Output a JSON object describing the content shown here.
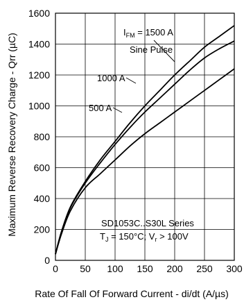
{
  "chart_data": {
    "type": "line",
    "title": "",
    "xlabel": "Rate Of Fall Of Forward Current - di/dt (A/µs)",
    "ylabel": "Maximum Reverse Recovery Charge - Qrr (µC)",
    "xlim": [
      0,
      300
    ],
    "ylim": [
      0,
      1600
    ],
    "x_ticks": [
      0,
      50,
      100,
      150,
      200,
      250,
      300
    ],
    "y_ticks": [
      0,
      200,
      400,
      600,
      800,
      1000,
      1200,
      1400,
      1600
    ],
    "x_tick_labels": [
      "0",
      "50",
      "100",
      "150",
      "200",
      "250",
      "300"
    ],
    "y_tick_labels": [
      "0",
      "200",
      "400",
      "600",
      "800",
      "1000",
      "1200",
      "1400",
      "1600"
    ],
    "grid": true,
    "series": [
      {
        "name": "500 A",
        "x": [
          0,
          10,
          25,
          50,
          75,
          100,
          125,
          150,
          175,
          200,
          225,
          250,
          275,
          300
        ],
        "y": [
          40,
          170,
          320,
          470,
          560,
          650,
          740,
          820,
          890,
          960,
          1030,
          1100,
          1170,
          1240
        ]
      },
      {
        "name": "1000 A",
        "x": [
          0,
          10,
          25,
          50,
          75,
          100,
          125,
          150,
          175,
          200,
          225,
          250,
          275,
          300
        ],
        "y": [
          40,
          180,
          340,
          500,
          630,
          750,
          860,
          960,
          1050,
          1140,
          1230,
          1310,
          1370,
          1420
        ]
      },
      {
        "name": "1500 A",
        "x": [
          0,
          10,
          25,
          50,
          75,
          100,
          125,
          150,
          175,
          200,
          225,
          250,
          275,
          300
        ],
        "y": [
          40,
          185,
          345,
          510,
          650,
          770,
          890,
          1000,
          1100,
          1200,
          1290,
          1380,
          1450,
          1520
        ]
      }
    ],
    "annotations": {
      "series_1500_label_prefix": "I",
      "series_1500_label_sub": "FM",
      "series_1500_label_suffix": " = 1500 A",
      "waveform": "Sine Pulse",
      "label_1000": "1000 A",
      "label_500": "500 A",
      "conditions_line1": "SD1053C..S30L Series",
      "cond_tj": "T",
      "cond_tj_sub": "J",
      "cond_tj_rest": " = 150°C; V",
      "cond_vr_sub": "r",
      "cond_vr_rest": " > 100V"
    }
  }
}
